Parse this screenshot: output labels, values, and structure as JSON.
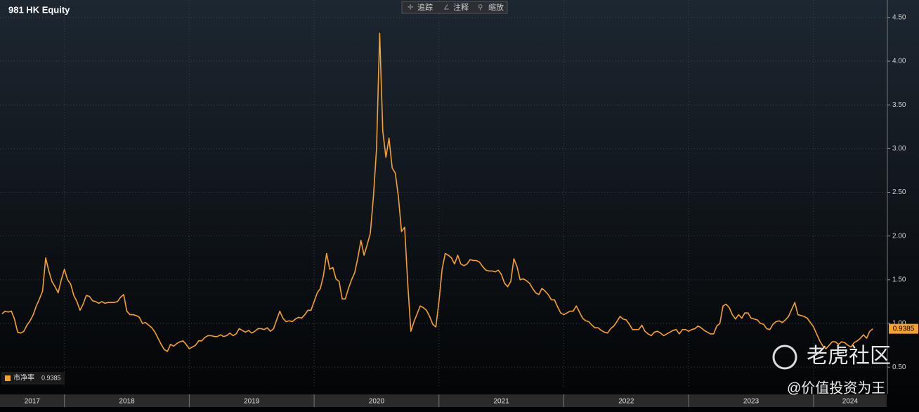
{
  "chart_data": {
    "type": "line",
    "title": "981 HK Equity",
    "toolbar": [
      "追踪",
      "注释",
      "缩放"
    ],
    "watermarks": [
      "老虎社区",
      "@价值投资为王"
    ],
    "xlim": [
      2017.484,
      2024.586
    ],
    "xticks": [
      2018,
      2019,
      2020,
      2021,
      2022,
      2023,
      2024
    ],
    "year_labels": [
      "2017",
      "2018",
      "2019",
      "2020",
      "2021",
      "2022",
      "2023",
      "2024"
    ],
    "ylim": [
      0.26,
      4.7
    ],
    "yticks": [
      {
        "value": 0.5,
        "label": "0.50"
      },
      {
        "value": 1,
        "label": "1.00"
      },
      {
        "value": 1.5,
        "label": "1.50"
      },
      {
        "value": 2,
        "label": "2.00"
      },
      {
        "value": 2.5,
        "label": "2.50"
      },
      {
        "value": 3,
        "label": "3.00"
      },
      {
        "value": 3.5,
        "label": "3.50"
      },
      {
        "value": 4,
        "label": "4.00"
      },
      {
        "value": 4.5,
        "label": "4.50"
      }
    ],
    "grid": true,
    "x": [
      2017.5,
      2017.525,
      2017.55,
      2017.575,
      2017.6,
      2017.625,
      2017.65,
      2017.675,
      2017.7,
      2017.725,
      2017.75,
      2017.775,
      2017.8,
      2017.825,
      2017.85,
      2017.875,
      2017.9,
      2017.925,
      2017.95,
      2017.975,
      2018,
      2018.025,
      2018.05,
      2018.075,
      2018.1,
      2018.125,
      2018.15,
      2018.175,
      2018.2,
      2018.225,
      2018.25,
      2018.275,
      2018.3,
      2018.325,
      2018.35,
      2018.375,
      2018.4,
      2018.425,
      2018.45,
      2018.475,
      2018.5,
      2018.525,
      2018.55,
      2018.575,
      2018.6,
      2018.625,
      2018.65,
      2018.675,
      2018.7,
      2018.725,
      2018.75,
      2018.775,
      2018.8,
      2018.825,
      2018.85,
      2018.875,
      2018.9,
      2018.925,
      2018.95,
      2018.975,
      2019,
      2019.025,
      2019.05,
      2019.075,
      2019.1,
      2019.125,
      2019.15,
      2019.175,
      2019.2,
      2019.225,
      2019.25,
      2019.275,
      2019.3,
      2019.325,
      2019.35,
      2019.375,
      2019.4,
      2019.425,
      2019.45,
      2019.475,
      2019.5,
      2019.525,
      2019.55,
      2019.575,
      2019.6,
      2019.625,
      2019.65,
      2019.675,
      2019.7,
      2019.725,
      2019.75,
      2019.775,
      2019.8,
      2019.825,
      2019.85,
      2019.875,
      2019.9,
      2019.925,
      2019.95,
      2019.975,
      2020,
      2020.025,
      2020.05,
      2020.075,
      2020.1,
      2020.125,
      2020.15,
      2020.175,
      2020.2,
      2020.225,
      2020.25,
      2020.275,
      2020.3,
      2020.325,
      2020.35,
      2020.375,
      2020.4,
      2020.425,
      2020.45,
      2020.475,
      2020.5,
      2020.525,
      2020.55,
      2020.575,
      2020.6,
      2020.625,
      2020.65,
      2020.675,
      2020.7,
      2020.725,
      2020.75,
      2020.775,
      2020.8,
      2020.825,
      2020.85,
      2020.875,
      2020.9,
      2020.925,
      2020.95,
      2020.975,
      2021,
      2021.025,
      2021.05,
      2021.075,
      2021.1,
      2021.125,
      2021.15,
      2021.175,
      2021.2,
      2021.225,
      2021.25,
      2021.275,
      2021.3,
      2021.325,
      2021.35,
      2021.375,
      2021.4,
      2021.425,
      2021.45,
      2021.475,
      2021.5,
      2021.525,
      2021.55,
      2021.575,
      2021.6,
      2021.625,
      2021.65,
      2021.675,
      2021.7,
      2021.725,
      2021.75,
      2021.775,
      2021.8,
      2021.825,
      2021.85,
      2021.875,
      2021.9,
      2021.925,
      2021.95,
      2021.975,
      2022,
      2022.025,
      2022.05,
      2022.075,
      2022.1,
      2022.125,
      2022.15,
      2022.175,
      2022.2,
      2022.225,
      2022.25,
      2022.275,
      2022.3,
      2022.325,
      2022.35,
      2022.375,
      2022.4,
      2022.425,
      2022.45,
      2022.475,
      2022.5,
      2022.525,
      2022.55,
      2022.575,
      2022.6,
      2022.625,
      2022.65,
      2022.675,
      2022.7,
      2022.725,
      2022.75,
      2022.775,
      2022.8,
      2022.825,
      2022.85,
      2022.875,
      2022.9,
      2022.925,
      2022.95,
      2022.975,
      2023,
      2023.025,
      2023.05,
      2023.075,
      2023.1,
      2023.125,
      2023.15,
      2023.175,
      2023.2,
      2023.225,
      2023.25,
      2023.275,
      2023.3,
      2023.325,
      2023.35,
      2023.375,
      2023.4,
      2023.425,
      2023.45,
      2023.475,
      2023.5,
      2023.525,
      2023.55,
      2023.575,
      2023.6,
      2023.625,
      2023.65,
      2023.675,
      2023.7,
      2023.725,
      2023.75,
      2023.775,
      2023.8,
      2023.825,
      2023.85,
      2023.875,
      2023.9,
      2023.925,
      2023.95,
      2023.975,
      2024,
      2024.025,
      2024.05,
      2024.075,
      2024.1,
      2024.125,
      2024.15,
      2024.175,
      2024.2,
      2024.225,
      2024.25,
      2024.275,
      2024.3,
      2024.325,
      2024.35,
      2024.375,
      2024.4,
      2024.425,
      2024.45,
      2024.475
    ],
    "series": [
      {
        "name": "市净率",
        "color": "#f5a12a",
        "values": [
          1.11,
          1.14,
          1.13,
          1.14,
          1.05,
          0.9,
          0.89,
          0.91,
          0.98,
          1.03,
          1.1,
          1.2,
          1.28,
          1.37,
          1.75,
          1.6,
          1.48,
          1.42,
          1.35,
          1.5,
          1.62,
          1.5,
          1.45,
          1.32,
          1.25,
          1.15,
          1.22,
          1.32,
          1.31,
          1.26,
          1.25,
          1.23,
          1.25,
          1.23,
          1.24,
          1.24,
          1.24,
          1.25,
          1.3,
          1.33,
          1.14,
          1.1,
          1.1,
          1.09,
          1.07,
          1.0,
          1.01,
          0.98,
          0.95,
          0.9,
          0.83,
          0.76,
          0.7,
          0.68,
          0.76,
          0.74,
          0.77,
          0.79,
          0.8,
          0.76,
          0.71,
          0.73,
          0.75,
          0.8,
          0.8,
          0.84,
          0.86,
          0.86,
          0.85,
          0.85,
          0.87,
          0.85,
          0.86,
          0.89,
          0.86,
          0.88,
          0.94,
          0.92,
          0.9,
          0.92,
          0.89,
          0.91,
          0.94,
          0.94,
          0.93,
          0.95,
          0.91,
          0.94,
          1.04,
          1.14,
          1.06,
          1.02,
          1.03,
          1.02,
          1.05,
          1.07,
          1.06,
          1.1,
          1.15,
          1.15,
          1.25,
          1.35,
          1.4,
          1.55,
          1.8,
          1.62,
          1.64,
          1.51,
          1.48,
          1.28,
          1.28,
          1.4,
          1.5,
          1.58,
          1.75,
          1.95,
          1.78,
          1.9,
          2.03,
          2.45,
          3.0,
          4.32,
          3.2,
          2.9,
          3.12,
          2.78,
          2.72,
          2.45,
          2.05,
          2.1,
          1.45,
          0.91,
          1.02,
          1.11,
          1.2,
          1.18,
          1.15,
          1.08,
          0.99,
          0.96,
          1.25,
          1.62,
          1.8,
          1.78,
          1.75,
          1.68,
          1.78,
          1.68,
          1.66,
          1.68,
          1.73,
          1.72,
          1.72,
          1.7,
          1.65,
          1.61,
          1.6,
          1.6,
          1.59,
          1.61,
          1.56,
          1.46,
          1.42,
          1.48,
          1.74,
          1.65,
          1.5,
          1.51,
          1.49,
          1.46,
          1.4,
          1.35,
          1.33,
          1.4,
          1.37,
          1.33,
          1.27,
          1.27,
          1.19,
          1.12,
          1.1,
          1.12,
          1.14,
          1.14,
          1.2,
          1.13,
          1.06,
          1.03,
          1.02,
          0.98,
          0.95,
          0.95,
          0.92,
          0.9,
          0.89,
          0.94,
          0.97,
          1.02,
          1.08,
          1.05,
          1.04,
          0.99,
          0.93,
          0.93,
          0.93,
          0.98,
          0.91,
          0.88,
          0.86,
          0.9,
          0.91,
          0.89,
          0.86,
          0.88,
          0.9,
          0.92,
          0.93,
          0.88,
          0.93,
          0.93,
          0.91,
          0.93,
          0.94,
          0.97,
          0.95,
          0.92,
          0.9,
          0.88,
          0.88,
          0.97,
          1.0,
          1.2,
          1.22,
          1.18,
          1.1,
          1.05,
          1.1,
          1.06,
          1.12,
          1.12,
          1.06,
          1.05,
          1.04,
          1.0,
          0.99,
          0.94,
          0.93,
          0.99,
          1.02,
          1.03,
          1.01,
          1.04,
          1.08,
          1.16,
          1.24,
          1.1,
          1.09,
          1.08,
          1.06,
          1.01,
          0.96,
          0.88,
          0.8,
          0.74,
          0.71,
          0.75,
          0.79,
          0.79,
          0.76,
          0.79,
          0.78,
          0.75,
          0.73,
          0.78,
          0.8,
          0.83,
          0.87,
          0.83,
          0.91,
          0.9385
        ]
      }
    ]
  }
}
